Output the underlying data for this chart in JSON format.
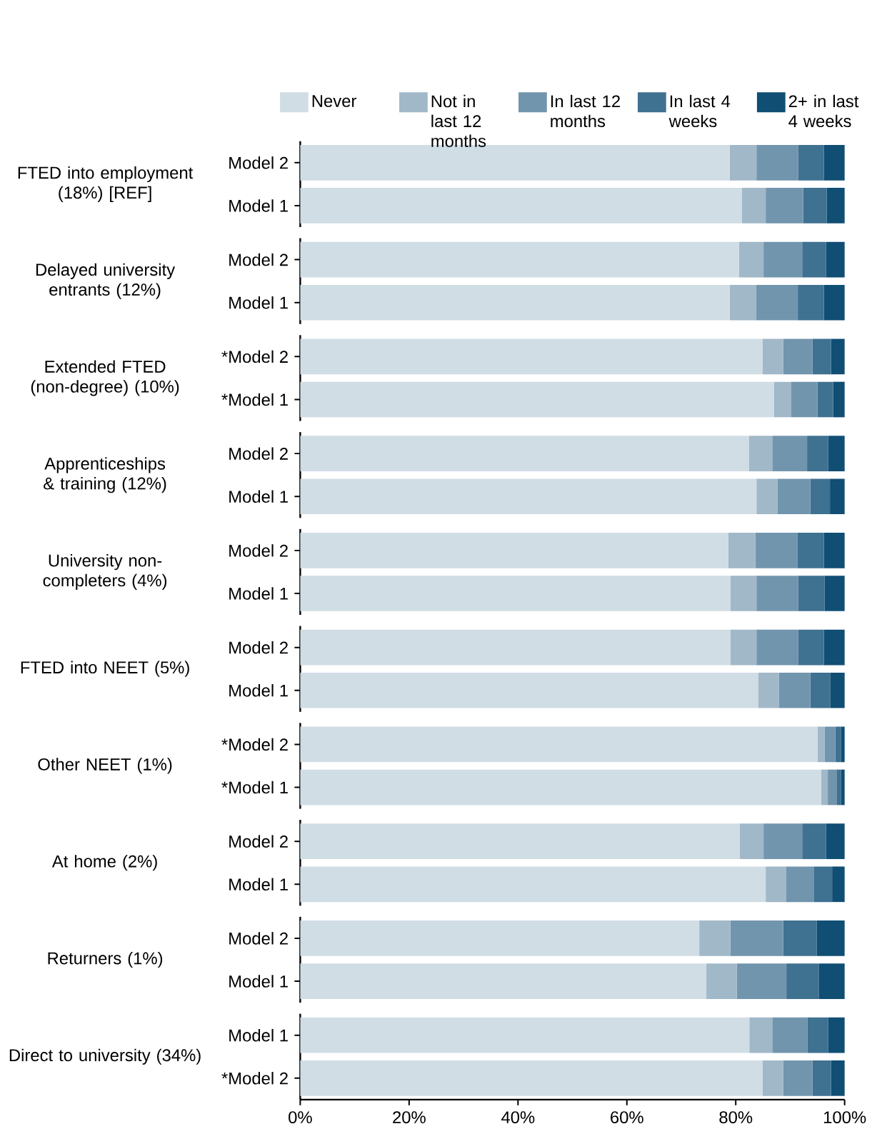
{
  "chart_data": [
    {
      "type": "bar",
      "orientation": "horizontal",
      "stacked": true,
      "legend": "top",
      "tick_labels": "y",
      "ylabel": "FTED into employment (18%) [REF]",
      "categories": [
        "Model 2",
        "Model 1"
      ],
      "xlim": [
        0,
        100
      ],
      "series": [
        {
          "name": "Never",
          "color": "#d0dde5",
          "values": [
            78.9,
            81.1
          ]
        },
        {
          "name": "Not in last 12 months",
          "color": "#a1b8c8",
          "values": [
            4.9,
            4.4
          ]
        },
        {
          "name": "In last 12 months",
          "color": "#7295ae",
          "values": [
            7.7,
            6.9
          ]
        },
        {
          "name": "In last 4 weeks",
          "color": "#3f7191",
          "values": [
            4.7,
            4.3
          ]
        },
        {
          "name": "2+ in last 4 weeks",
          "color": "#104e74",
          "values": [
            3.8,
            3.3
          ]
        }
      ]
    },
    {
      "type": "bar",
      "orientation": "horizontal",
      "stacked": true,
      "tick_labels": "y",
      "ylabel": "Delayed university entrants (12%)",
      "categories": [
        "Model 2",
        "Model 1"
      ],
      "xlim": [
        0,
        100
      ],
      "series": [
        {
          "color": "#d0dde5",
          "values": [
            80.6,
            78.9
          ]
        },
        {
          "color": "#a1b8c8",
          "values": [
            4.5,
            4.8
          ]
        },
        {
          "color": "#7295ae",
          "values": [
            7.1,
            7.7
          ]
        },
        {
          "color": "#3f7191",
          "values": [
            4.4,
            4.8
          ]
        },
        {
          "color": "#104e74",
          "values": [
            3.4,
            3.8
          ]
        }
      ]
    },
    {
      "type": "bar",
      "orientation": "horizontal",
      "stacked": true,
      "tick_labels": "y",
      "ylabel": "Extended FTED (non-degree) (10%)",
      "categories": [
        "*Model 2",
        "*Model 1"
      ],
      "xlim": [
        0,
        100
      ],
      "series": [
        {
          "color": "#d0dde5",
          "values": [
            84.9,
            87.0
          ]
        },
        {
          "color": "#a1b8c8",
          "values": [
            3.8,
            3.2
          ]
        },
        {
          "color": "#7295ae",
          "values": [
            5.4,
            4.8
          ]
        },
        {
          "color": "#3f7191",
          "values": [
            3.4,
            2.9
          ]
        },
        {
          "color": "#104e74",
          "values": [
            2.5,
            2.1
          ]
        }
      ]
    },
    {
      "type": "bar",
      "orientation": "horizontal",
      "stacked": true,
      "tick_labels": "y",
      "ylabel": "Apprenticeships & training (12%)",
      "categories": [
        "Model 2",
        "Model 1"
      ],
      "xlim": [
        0,
        100
      ],
      "series": [
        {
          "color": "#d0dde5",
          "values": [
            82.4,
            83.8
          ]
        },
        {
          "color": "#a1b8c8",
          "values": [
            4.3,
            3.9
          ]
        },
        {
          "color": "#7295ae",
          "values": [
            6.4,
            6.0
          ]
        },
        {
          "color": "#3f7191",
          "values": [
            3.9,
            3.6
          ]
        },
        {
          "color": "#104e74",
          "values": [
            3.0,
            2.7
          ]
        }
      ]
    },
    {
      "type": "bar",
      "orientation": "horizontal",
      "stacked": true,
      "tick_labels": "y",
      "ylabel": "University non-completers (4%)",
      "categories": [
        "Model 2",
        "Model 1"
      ],
      "xlim": [
        0,
        100
      ],
      "series": [
        {
          "color": "#d0dde5",
          "values": [
            78.6,
            79.0
          ]
        },
        {
          "color": "#a1b8c8",
          "values": [
            5.0,
            4.8
          ]
        },
        {
          "color": "#7295ae",
          "values": [
            7.7,
            7.7
          ]
        },
        {
          "color": "#3f7191",
          "values": [
            4.9,
            4.8
          ]
        },
        {
          "color": "#104e74",
          "values": [
            3.8,
            3.7
          ]
        }
      ]
    },
    {
      "type": "bar",
      "orientation": "horizontal",
      "stacked": true,
      "tick_labels": "y",
      "ylabel": "FTED into NEET (5%)",
      "categories": [
        "Model 2",
        "Model 1"
      ],
      "xlim": [
        0,
        100
      ],
      "series": [
        {
          "color": "#d0dde5",
          "values": [
            79.0,
            84.1
          ]
        },
        {
          "color": "#a1b8c8",
          "values": [
            4.8,
            3.8
          ]
        },
        {
          "color": "#7295ae",
          "values": [
            7.7,
            5.8
          ]
        },
        {
          "color": "#3f7191",
          "values": [
            4.7,
            3.7
          ]
        },
        {
          "color": "#104e74",
          "values": [
            3.8,
            2.6
          ]
        }
      ]
    },
    {
      "type": "bar",
      "orientation": "horizontal",
      "stacked": true,
      "tick_labels": "y",
      "ylabel": "Other NEET (1%)",
      "categories": [
        "*Model 2",
        "*Model 1"
      ],
      "xlim": [
        0,
        100
      ],
      "series": [
        {
          "color": "#d0dde5",
          "values": [
            95.0,
            95.7
          ]
        },
        {
          "color": "#a1b8c8",
          "values": [
            1.3,
            1.2
          ]
        },
        {
          "color": "#7295ae",
          "values": [
            2.0,
            1.7
          ]
        },
        {
          "color": "#3f7191",
          "values": [
            1.0,
            0.7
          ]
        },
        {
          "color": "#104e74",
          "values": [
            0.7,
            0.7
          ]
        }
      ]
    },
    {
      "type": "bar",
      "orientation": "horizontal",
      "stacked": true,
      "tick_labels": "y",
      "ylabel": "At home (2%)",
      "categories": [
        "Model 2",
        "Model 1"
      ],
      "xlim": [
        0,
        100
      ],
      "series": [
        {
          "color": "#d0dde5",
          "values": [
            80.7,
            85.5
          ]
        },
        {
          "color": "#a1b8c8",
          "values": [
            4.4,
            3.7
          ]
        },
        {
          "color": "#7295ae",
          "values": [
            7.1,
            5.2
          ]
        },
        {
          "color": "#3f7191",
          "values": [
            4.4,
            3.3
          ]
        },
        {
          "color": "#104e74",
          "values": [
            3.4,
            2.3
          ]
        }
      ]
    },
    {
      "type": "bar",
      "orientation": "horizontal",
      "stacked": true,
      "tick_labels": "y",
      "ylabel": "Returners (1%)",
      "categories": [
        "Model 2",
        "Model 1"
      ],
      "xlim": [
        0,
        100
      ],
      "series": [
        {
          "color": "#d0dde5",
          "values": [
            73.3,
            74.6
          ]
        },
        {
          "color": "#a1b8c8",
          "values": [
            5.7,
            5.6
          ]
        },
        {
          "color": "#7295ae",
          "values": [
            9.7,
            9.1
          ]
        },
        {
          "color": "#3f7191",
          "values": [
            6.2,
            6.0
          ]
        },
        {
          "color": "#104e74",
          "values": [
            5.1,
            4.7
          ]
        }
      ]
    },
    {
      "type": "bar",
      "orientation": "horizontal",
      "stacked": true,
      "ylabel": "Direct to university (34%)",
      "categories": [
        "Model 1",
        "*Model 2"
      ],
      "xlim": [
        0,
        100
      ],
      "xticks": [
        {
          "value": 0,
          "label": "0%"
        },
        {
          "value": 20,
          "label": "20%"
        },
        {
          "value": 40,
          "label": "40%"
        },
        {
          "value": 60,
          "label": "60%"
        },
        {
          "value": 80,
          "label": "80%"
        },
        {
          "value": 100,
          "label": "100%"
        }
      ],
      "series": [
        {
          "color": "#d0dde5",
          "values": [
            82.5,
            84.9
          ]
        },
        {
          "color": "#a1b8c8",
          "values": [
            4.2,
            3.8
          ]
        },
        {
          "color": "#7295ae",
          "values": [
            6.5,
            5.4
          ]
        },
        {
          "color": "#3f7191",
          "values": [
            3.8,
            3.4
          ]
        },
        {
          "color": "#104e74",
          "values": [
            3.0,
            2.5
          ]
        }
      ]
    }
  ]
}
